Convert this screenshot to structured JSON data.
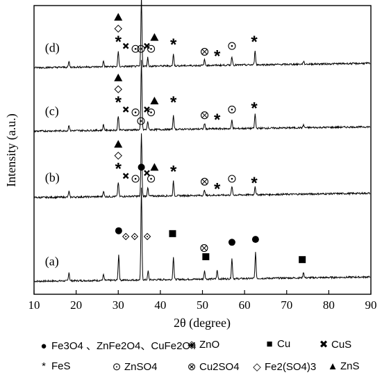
{
  "chart_data": {
    "type": "line",
    "xlabel": "2θ (degree)",
    "ylabel": "Intensity (a.u.)",
    "xlim": [
      10,
      90
    ],
    "xticks": [
      "10",
      "20",
      "30",
      "40",
      "50",
      "60",
      "70",
      "80",
      "90"
    ],
    "grid": false,
    "series": [
      {
        "name": "(a)",
        "baseline": 0.06,
        "peaks": [
          [
            18.3,
            0.03
          ],
          [
            26.5,
            0.02
          ],
          [
            30.1,
            0.09
          ],
          [
            35.5,
            0.32
          ],
          [
            37.1,
            0.03
          ],
          [
            43.1,
            0.08
          ],
          [
            50.5,
            0.03
          ],
          [
            53.5,
            0.03
          ],
          [
            57.0,
            0.07
          ],
          [
            62.6,
            0.09
          ],
          [
            74.0,
            0.02
          ]
        ],
        "markers": [
          {
            "x": 30.1,
            "h": 0.16,
            "symbol": "filled-circle"
          },
          {
            "x": 31.8,
            "h": 0.14,
            "symbol": "open-diamond-small"
          },
          {
            "x": 33.9,
            "h": 0.14,
            "symbol": "open-diamond-small"
          },
          {
            "x": 36.9,
            "h": 0.14,
            "symbol": "open-diamond-small"
          },
          {
            "x": 35.5,
            "h": 0.38,
            "symbol": "filled-circle"
          },
          {
            "x": 42.9,
            "h": 0.15,
            "symbol": "filled-square"
          },
          {
            "x": 50.4,
            "h": 0.1,
            "symbol": "crossed-circle"
          },
          {
            "x": 50.8,
            "h": 0.07,
            "symbol": "filled-square"
          },
          {
            "x": 57.0,
            "h": 0.12,
            "symbol": "filled-circle"
          },
          {
            "x": 62.6,
            "h": 0.13,
            "symbol": "filled-circle"
          },
          {
            "x": 73.7,
            "h": 0.06,
            "symbol": "filled-square"
          }
        ]
      },
      {
        "name": "(b)",
        "baseline": 0.35,
        "peaks": [
          [
            18.3,
            0.02
          ],
          [
            26.5,
            0.02
          ],
          [
            30.0,
            0.05
          ],
          [
            35.5,
            0.22
          ],
          [
            37.0,
            0.03
          ],
          [
            43.1,
            0.05
          ],
          [
            50.5,
            0.02
          ],
          [
            57.0,
            0.03
          ],
          [
            62.5,
            0.03
          ]
        ],
        "markers": [
          {
            "x": 30.0,
            "h": 0.09,
            "symbol": "star"
          },
          {
            "x": 30.0,
            "h": 0.13,
            "symbol": "open-diamond"
          },
          {
            "x": 30.0,
            "h": 0.17,
            "symbol": "filled-triangle"
          },
          {
            "x": 31.8,
            "h": 0.06,
            "symbol": "cross"
          },
          {
            "x": 34.1,
            "h": 0.05,
            "symbol": "open-circle"
          },
          {
            "x": 35.4,
            "h": 0.25,
            "symbol": "open-circle"
          },
          {
            "x": 36.8,
            "h": 0.07,
            "symbol": "cross"
          },
          {
            "x": 37.8,
            "h": 0.05,
            "symbol": "open-circle"
          },
          {
            "x": 38.6,
            "h": 0.09,
            "symbol": "filled-triangle"
          },
          {
            "x": 43.1,
            "h": 0.08,
            "symbol": "star"
          },
          {
            "x": 50.5,
            "h": 0.04,
            "symbol": "crossed-circle"
          },
          {
            "x": 53.5,
            "h": 0.02,
            "symbol": "star"
          },
          {
            "x": 57.0,
            "h": 0.05,
            "symbol": "open-circle"
          },
          {
            "x": 62.3,
            "h": 0.04,
            "symbol": "star"
          }
        ]
      },
      {
        "name": "(c)",
        "baseline": 0.58,
        "peaks": [
          [
            18.3,
            0.02
          ],
          [
            26.5,
            0.02
          ],
          [
            30.0,
            0.05
          ],
          [
            35.5,
            0.24
          ],
          [
            37.0,
            0.03
          ],
          [
            43.1,
            0.05
          ],
          [
            50.5,
            0.02
          ],
          [
            57.0,
            0.03
          ],
          [
            62.5,
            0.05
          ],
          [
            74.0,
            0.01
          ]
        ],
        "markers": [
          {
            "x": 30.0,
            "h": 0.09,
            "symbol": "star"
          },
          {
            "x": 30.0,
            "h": 0.13,
            "symbol": "open-diamond"
          },
          {
            "x": 30.0,
            "h": 0.17,
            "symbol": "filled-triangle"
          },
          {
            "x": 31.8,
            "h": 0.06,
            "symbol": "cross"
          },
          {
            "x": 34.1,
            "h": 0.05,
            "symbol": "open-circle"
          },
          {
            "x": 35.4,
            "h": 0.27,
            "symbol": "open-circle"
          },
          {
            "x": 36.8,
            "h": 0.06,
            "symbol": "cross"
          },
          {
            "x": 37.8,
            "h": 0.05,
            "symbol": "open-circle"
          },
          {
            "x": 38.6,
            "h": 0.09,
            "symbol": "filled-triangle"
          },
          {
            "x": 43.1,
            "h": 0.09,
            "symbol": "star"
          },
          {
            "x": 50.5,
            "h": 0.04,
            "symbol": "crossed-circle"
          },
          {
            "x": 53.5,
            "h": 0.03,
            "symbol": "star"
          },
          {
            "x": 57.0,
            "h": 0.06,
            "symbol": "open-circle"
          },
          {
            "x": 62.3,
            "h": 0.07,
            "symbol": "star"
          }
        ]
      },
      {
        "name": "(d)",
        "baseline": 0.8,
        "peaks": [
          [
            18.3,
            0.02
          ],
          [
            26.5,
            0.02
          ],
          [
            30.0,
            0.05
          ],
          [
            35.5,
            0.24
          ],
          [
            37.0,
            0.03
          ],
          [
            43.1,
            0.04
          ],
          [
            50.5,
            0.02
          ],
          [
            57.0,
            0.03
          ],
          [
            62.5,
            0.05
          ],
          [
            74.0,
            0.01
          ]
        ],
        "markers": [
          {
            "x": 30.0,
            "h": 0.08,
            "symbol": "star"
          },
          {
            "x": 30.0,
            "h": 0.12,
            "symbol": "open-diamond"
          },
          {
            "x": 30.0,
            "h": 0.16,
            "symbol": "filled-triangle"
          },
          {
            "x": 31.8,
            "h": 0.06,
            "symbol": "cross"
          },
          {
            "x": 34.1,
            "h": 0.05,
            "symbol": "open-circle"
          },
          {
            "x": 35.4,
            "h": 0.27,
            "symbol": "open-circle"
          },
          {
            "x": 36.8,
            "h": 0.06,
            "symbol": "cross"
          },
          {
            "x": 37.8,
            "h": 0.05,
            "symbol": "open-circle"
          },
          {
            "x": 38.6,
            "h": 0.09,
            "symbol": "filled-triangle"
          },
          {
            "x": 43.1,
            "h": 0.07,
            "symbol": "star"
          },
          {
            "x": 50.5,
            "h": 0.04,
            "symbol": "crossed-circle"
          },
          {
            "x": 53.5,
            "h": 0.03,
            "symbol": "star"
          },
          {
            "x": 57.0,
            "h": 0.06,
            "symbol": "open-circle"
          },
          {
            "x": 62.3,
            "h": 0.08,
            "symbol": "star"
          }
        ]
      }
    ]
  },
  "legend": [
    {
      "symbol": "filled-circle",
      "icon": "●",
      "label": "Fe3O4 、ZnFe2O4、CuFe2O4"
    },
    {
      "symbol": "open-diamond",
      "icon": "◈",
      "label": "ZnO"
    },
    {
      "symbol": "filled-square",
      "icon": "■",
      "label": "Cu"
    },
    {
      "symbol": "cross",
      "icon": "✖",
      "label": "CuS"
    },
    {
      "symbol": "star",
      "icon": "*",
      "label": "FeS"
    },
    {
      "symbol": "open-circle",
      "icon": "⊙",
      "label": "ZnSO4"
    },
    {
      "symbol": "crossed-circle",
      "icon": "⊗",
      "label": "Cu2SO4"
    },
    {
      "symbol": "open-diamond",
      "icon": "◇",
      "label": "Fe2(SO4)3"
    },
    {
      "symbol": "filled-triangle",
      "icon": "▲",
      "label": "ZnS"
    }
  ]
}
